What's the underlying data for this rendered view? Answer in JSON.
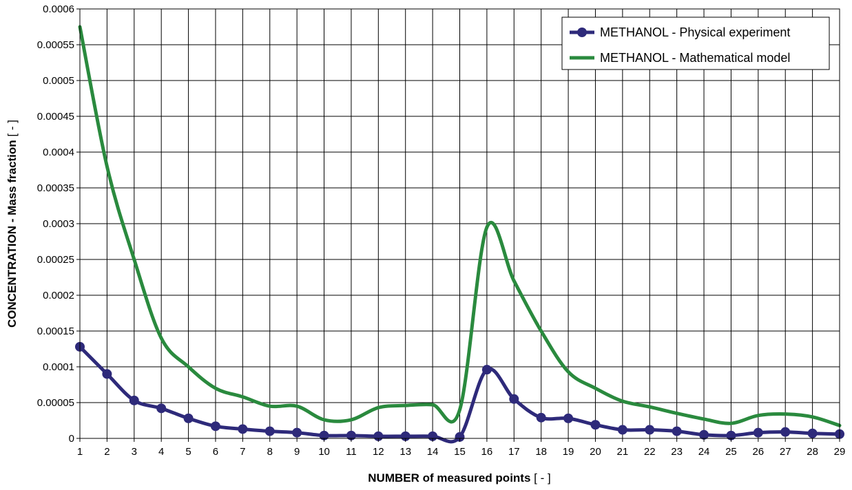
{
  "chart_data": {
    "type": "line",
    "title": "",
    "xlabel_bold": "NUMBER of measured points",
    "xlabel_unit": " [ - ]",
    "ylabel_bold": "CONCENTRATION - Mass fraction",
    "ylabel_unit": " [ - ]",
    "x": [
      1,
      2,
      3,
      4,
      5,
      6,
      7,
      8,
      9,
      10,
      11,
      12,
      13,
      14,
      15,
      16,
      17,
      18,
      19,
      20,
      21,
      22,
      23,
      24,
      25,
      26,
      27,
      28,
      29
    ],
    "x_tick_labels": [
      "1",
      "2",
      "3",
      "4",
      "5",
      "6",
      "7",
      "8",
      "9",
      "10",
      "11",
      "12",
      "13",
      "14",
      "15",
      "16",
      "17",
      "18",
      "19",
      "20",
      "21",
      "22",
      "23",
      "24",
      "25",
      "26",
      "27",
      "28",
      "29"
    ],
    "ylim": [
      0,
      0.0006
    ],
    "y_ticks": [
      0,
      5e-05,
      0.0001,
      0.00015,
      0.0002,
      0.00025,
      0.0003,
      0.00035,
      0.0004,
      0.00045,
      0.0005,
      0.00055,
      0.0006
    ],
    "y_tick_labels": [
      "0",
      "0.00005",
      "0.0001",
      "0.00015",
      "0.0002",
      "0.00025",
      "0.0003",
      "0.00035",
      "0.0004",
      "0.00045",
      "0.0005",
      "0.00055",
      "0.0006"
    ],
    "grid": true,
    "legend_position": "top-right",
    "series": [
      {
        "name": "METHANOL - Physical experiment",
        "color": "#2e2a7a",
        "markers": true,
        "values": [
          0.000128,
          9e-05,
          5.3e-05,
          4.2e-05,
          2.8e-05,
          1.7e-05,
          1.3e-05,
          1e-05,
          8e-06,
          4e-06,
          4e-06,
          3e-06,
          3e-06,
          3e-06,
          2e-06,
          9.6e-05,
          5.5e-05,
          2.9e-05,
          2.8e-05,
          1.9e-05,
          1.2e-05,
          1.2e-05,
          1e-05,
          5e-06,
          4e-06,
          8e-06,
          9e-06,
          7e-06,
          6e-06
        ]
      },
      {
        "name": "METHANOL - Mathematical model",
        "color": "#2a8a3e",
        "markers": false,
        "values": [
          0.000575,
          0.00038,
          0.00025,
          0.00014,
          0.0001,
          7e-05,
          5.8e-05,
          4.5e-05,
          4.5e-05,
          2.6e-05,
          2.6e-05,
          4.3e-05,
          4.6e-05,
          4.7e-05,
          4e-05,
          0.000295,
          0.00022,
          0.00015,
          9.3e-05,
          7e-05,
          5.2e-05,
          4.4e-05,
          3.5e-05,
          2.7e-05,
          2.1e-05,
          3.2e-05,
          3.4e-05,
          3e-05,
          1.8e-05
        ]
      }
    ]
  }
}
